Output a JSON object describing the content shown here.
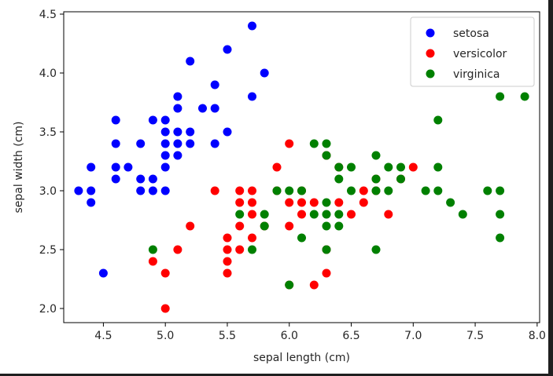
{
  "chart_data": {
    "type": "scatter",
    "title": "",
    "xlabel": "sepal length (cm)",
    "ylabel": "sepal width (cm)",
    "xlim": [
      4.18,
      8.02
    ],
    "ylim": [
      1.88,
      4.52
    ],
    "xticks": [
      4.5,
      5.0,
      5.5,
      6.0,
      6.5,
      7.0,
      7.5,
      8.0
    ],
    "xtick_labels": [
      "4.5",
      "5.0",
      "5.5",
      "6.0",
      "6.5",
      "7.0",
      "7.5",
      "8.0"
    ],
    "yticks": [
      2.0,
      2.5,
      3.0,
      3.5,
      4.0,
      4.5
    ],
    "ytick_labels": [
      "2.0",
      "2.5",
      "3.0",
      "3.5",
      "4.0",
      "4.5"
    ],
    "grid": false,
    "legend_position": "top-right",
    "series": [
      {
        "name": "setosa",
        "color": "#0000ff",
        "points": [
          [
            4.3,
            3.0
          ],
          [
            4.4,
            2.9
          ],
          [
            4.4,
            3.0
          ],
          [
            4.4,
            3.2
          ],
          [
            4.5,
            2.3
          ],
          [
            4.6,
            3.1
          ],
          [
            4.6,
            3.2
          ],
          [
            4.6,
            3.4
          ],
          [
            4.6,
            3.6
          ],
          [
            4.7,
            3.2
          ],
          [
            4.8,
            3.0
          ],
          [
            4.8,
            3.1
          ],
          [
            4.8,
            3.4
          ],
          [
            4.9,
            3.0
          ],
          [
            4.9,
            3.1
          ],
          [
            4.9,
            3.6
          ],
          [
            5.0,
            3.0
          ],
          [
            5.0,
            3.2
          ],
          [
            5.0,
            3.3
          ],
          [
            5.0,
            3.4
          ],
          [
            5.0,
            3.5
          ],
          [
            5.0,
            3.6
          ],
          [
            5.1,
            3.3
          ],
          [
            5.1,
            3.4
          ],
          [
            5.1,
            3.5
          ],
          [
            5.1,
            3.7
          ],
          [
            5.1,
            3.8
          ],
          [
            5.2,
            3.4
          ],
          [
            5.2,
            3.5
          ],
          [
            5.2,
            4.1
          ],
          [
            5.3,
            3.7
          ],
          [
            5.4,
            3.4
          ],
          [
            5.4,
            3.7
          ],
          [
            5.4,
            3.9
          ],
          [
            5.5,
            3.5
          ],
          [
            5.5,
            4.2
          ],
          [
            5.7,
            3.8
          ],
          [
            5.7,
            4.4
          ],
          [
            5.8,
            4.0
          ]
        ]
      },
      {
        "name": "versicolor",
        "color": "#ff0000",
        "points": [
          [
            4.9,
            2.4
          ],
          [
            5.0,
            2.0
          ],
          [
            5.0,
            2.3
          ],
          [
            5.1,
            2.5
          ],
          [
            5.2,
            2.7
          ],
          [
            5.4,
            3.0
          ],
          [
            5.5,
            2.3
          ],
          [
            5.5,
            2.4
          ],
          [
            5.5,
            2.5
          ],
          [
            5.5,
            2.6
          ],
          [
            5.6,
            2.5
          ],
          [
            5.6,
            2.7
          ],
          [
            5.6,
            2.9
          ],
          [
            5.6,
            3.0
          ],
          [
            5.7,
            2.6
          ],
          [
            5.7,
            2.8
          ],
          [
            5.7,
            2.9
          ],
          [
            5.7,
            3.0
          ],
          [
            5.8,
            2.7
          ],
          [
            5.9,
            3.0
          ],
          [
            5.9,
            3.2
          ],
          [
            6.0,
            2.2
          ],
          [
            6.0,
            2.7
          ],
          [
            6.0,
            2.9
          ],
          [
            6.0,
            3.4
          ],
          [
            6.1,
            2.8
          ],
          [
            6.1,
            2.9
          ],
          [
            6.1,
            3.0
          ],
          [
            6.2,
            2.2
          ],
          [
            6.2,
            2.9
          ],
          [
            6.3,
            2.3
          ],
          [
            6.3,
            2.5
          ],
          [
            6.3,
            3.3
          ],
          [
            6.4,
            2.9
          ],
          [
            6.4,
            3.2
          ],
          [
            6.5,
            2.8
          ],
          [
            6.6,
            2.9
          ],
          [
            6.6,
            3.0
          ],
          [
            6.7,
            3.0
          ],
          [
            6.7,
            3.1
          ],
          [
            6.8,
            2.8
          ],
          [
            6.9,
            3.1
          ],
          [
            7.0,
            3.2
          ]
        ]
      },
      {
        "name": "virginica",
        "color": "#008000",
        "points": [
          [
            4.9,
            2.5
          ],
          [
            5.6,
            2.8
          ],
          [
            5.7,
            2.5
          ],
          [
            5.8,
            2.7
          ],
          [
            5.8,
            2.8
          ],
          [
            5.9,
            3.0
          ],
          [
            6.0,
            2.2
          ],
          [
            6.0,
            3.0
          ],
          [
            6.1,
            2.6
          ],
          [
            6.1,
            3.0
          ],
          [
            6.2,
            2.8
          ],
          [
            6.2,
            3.4
          ],
          [
            6.3,
            2.5
          ],
          [
            6.3,
            2.7
          ],
          [
            6.3,
            2.8
          ],
          [
            6.3,
            2.9
          ],
          [
            6.3,
            3.3
          ],
          [
            6.3,
            3.4
          ],
          [
            6.4,
            2.7
          ],
          [
            6.4,
            2.8
          ],
          [
            6.4,
            3.1
          ],
          [
            6.4,
            3.2
          ],
          [
            6.5,
            3.0
          ],
          [
            6.5,
            3.2
          ],
          [
            6.7,
            2.5
          ],
          [
            6.7,
            3.0
          ],
          [
            6.7,
            3.1
          ],
          [
            6.7,
            3.3
          ],
          [
            6.8,
            3.0
          ],
          [
            6.8,
            3.2
          ],
          [
            6.9,
            3.1
          ],
          [
            6.9,
            3.2
          ],
          [
            7.1,
            3.0
          ],
          [
            7.2,
            3.0
          ],
          [
            7.2,
            3.2
          ],
          [
            7.2,
            3.6
          ],
          [
            7.3,
            2.9
          ],
          [
            7.4,
            2.8
          ],
          [
            7.6,
            3.0
          ],
          [
            7.7,
            2.6
          ],
          [
            7.7,
            2.8
          ],
          [
            7.7,
            3.0
          ],
          [
            7.7,
            3.8
          ],
          [
            7.9,
            3.8
          ]
        ]
      }
    ]
  }
}
